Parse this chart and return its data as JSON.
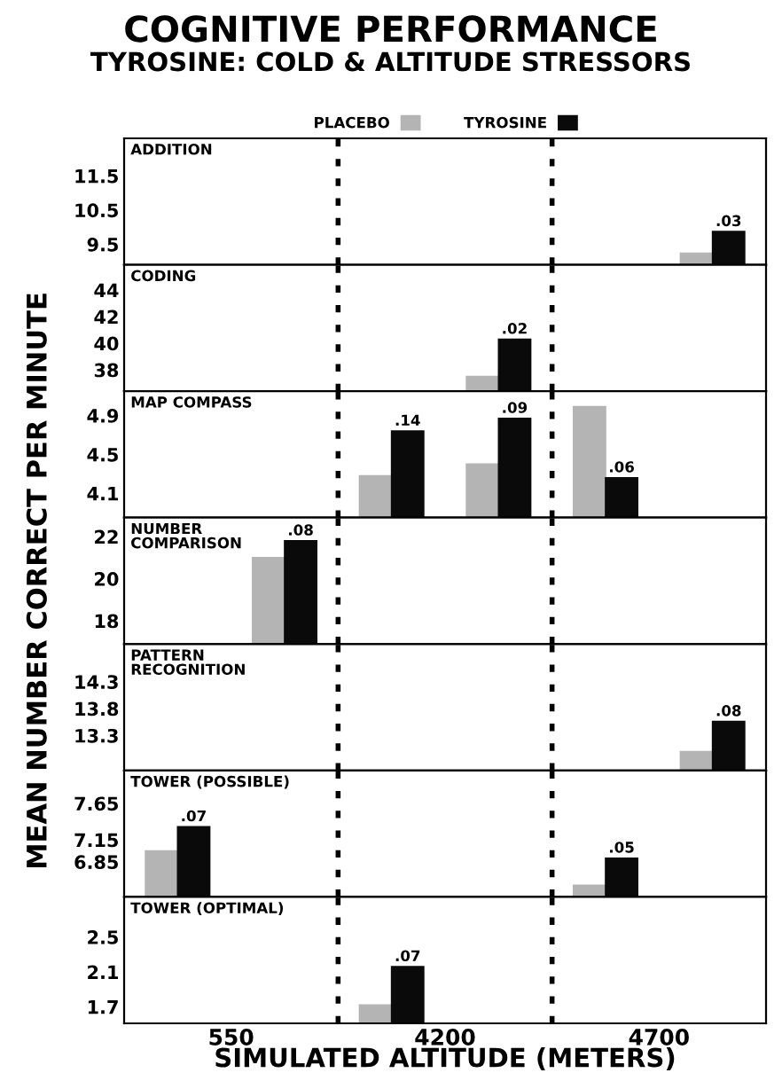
{
  "chart_data": [
    {
      "type": "bar",
      "title": "COGNITIVE PERFORMANCE",
      "subtitle": "TYROSINE: COLD & ALTITUDE STRESSORS",
      "annotations": [
        "ADDITION",
        ".03"
      ],
      "categories": [
        "550",
        "4200",
        "4700"
      ],
      "ylim": [
        8.9,
        12.6
      ],
      "yticks": [
        9.5,
        10.5,
        11.5
      ],
      "legend": "top",
      "tick_labels": "y",
      "series": [
        {
          "name": "PLACEBO",
          "color": "#b4b4b4",
          "values": [
            null,
            null,
            null
          ]
        },
        {
          "name": "TYROSINE",
          "color": "#0a0a0a",
          "values": [
            null,
            null,
            null
          ]
        },
        {
          "color": "#b4b4b4",
          "values": [
            null,
            null,
            9.24
          ]
        },
        {
          "color": "#0a0a0a",
          "values": [
            null,
            null,
            9.87
          ]
        }
      ]
    },
    {
      "type": "bar",
      "annotations": [
        "CODING",
        ".02"
      ],
      "categories": [
        "550",
        "4200",
        "4700"
      ],
      "ylim": [
        36.4,
        45.9
      ],
      "yticks": [
        38,
        40,
        42,
        44
      ],
      "tick_labels": "y",
      "series": [
        {
          "color": "#b4b4b4",
          "values": [
            null,
            null,
            null
          ]
        },
        {
          "color": "#0a0a0a",
          "values": [
            null,
            null,
            null
          ]
        },
        {
          "color": "#b4b4b4",
          "values": [
            null,
            37.5,
            null
          ]
        },
        {
          "color": "#0a0a0a",
          "values": [
            null,
            40.3,
            null
          ]
        }
      ]
    },
    {
      "type": "bar",
      "annotations": [
        "MAP COMPASS",
        ".14",
        ".09",
        ".06"
      ],
      "categories": [
        "550",
        "4200",
        "4700"
      ],
      "ylim": [
        3.85,
        5.15
      ],
      "yticks": [
        4.1,
        4.5,
        4.9
      ],
      "tick_labels": "y",
      "series": [
        {
          "color": "#b4b4b4",
          "values": [
            null,
            4.28,
            4.99
          ]
        },
        {
          "color": "#0a0a0a",
          "values": [
            null,
            4.74,
            4.26
          ]
        },
        {
          "color": "#b4b4b4",
          "values": [
            null,
            4.4,
            null
          ]
        },
        {
          "color": "#0a0a0a",
          "values": [
            null,
            4.87,
            null
          ]
        }
      ]
    },
    {
      "type": "bar",
      "annotations": [
        "NUMBER\nCOMPARISON",
        ".08"
      ],
      "ylabel": "MEAN NUMBER CORRECT PER MINUTE",
      "categories": [
        "550",
        "4200",
        "4700"
      ],
      "ylim": [
        16.9,
        22.9
      ],
      "yticks": [
        18,
        20,
        22
      ],
      "tick_labels": "y",
      "series": [
        {
          "color": "#b4b4b4",
          "values": [
            null,
            null,
            null
          ]
        },
        {
          "color": "#0a0a0a",
          "values": [
            null,
            null,
            null
          ]
        },
        {
          "color": "#b4b4b4",
          "values": [
            21.0,
            null,
            null
          ]
        },
        {
          "color": "#0a0a0a",
          "values": [
            21.8,
            null,
            null
          ]
        }
      ]
    },
    {
      "type": "bar",
      "annotations": [
        "PATTERN\nRECOGNITION",
        ".08"
      ],
      "categories": [
        "550",
        "4200",
        "4700"
      ],
      "ylim": [
        12.65,
        15.0
      ],
      "yticks": [
        13.3,
        13.8,
        14.3
      ],
      "tick_labels": "y",
      "series": [
        {
          "color": "#b4b4b4",
          "values": [
            null,
            null,
            null
          ]
        },
        {
          "color": "#0a0a0a",
          "values": [
            null,
            null,
            null
          ]
        },
        {
          "color": "#b4b4b4",
          "values": [
            null,
            null,
            13.0
          ]
        },
        {
          "color": "#0a0a0a",
          "values": [
            null,
            null,
            13.56
          ]
        }
      ]
    },
    {
      "type": "bar",
      "annotations": [
        "TOWER (POSSIBLE)",
        ".07",
        ".05"
      ],
      "categories": [
        "550",
        "4200",
        "4700"
      ],
      "ylim": [
        6.37,
        8.1
      ],
      "yticks": [
        6.85,
        7.15,
        7.65
      ],
      "tick_labels": "y",
      "series": [
        {
          "color": "#b4b4b4",
          "values": [
            7.0,
            null,
            6.53
          ]
        },
        {
          "color": "#0a0a0a",
          "values": [
            7.33,
            null,
            6.9
          ]
        },
        {
          "color": "#b4b4b4",
          "values": [
            null,
            null,
            null
          ]
        },
        {
          "color": "#0a0a0a",
          "values": [
            null,
            null,
            null
          ]
        }
      ]
    },
    {
      "type": "bar",
      "annotations": [
        "TOWER (OPTIMAL)",
        ".07"
      ],
      "xlabel": "SIMULATED ALTITUDE (METERS)",
      "categories": [
        "550",
        "4200",
        "4700"
      ],
      "ylim": [
        1.51,
        2.96
      ],
      "yticks": [
        1.7,
        2.1,
        2.5
      ],
      "series": [
        {
          "color": "#b4b4b4",
          "values": [
            null,
            1.72,
            null
          ]
        },
        {
          "color": "#0a0a0a",
          "values": [
            null,
            2.16,
            null
          ]
        },
        {
          "color": "#b4b4b4",
          "values": [
            null,
            null,
            null
          ]
        },
        {
          "color": "#0a0a0a",
          "values": [
            null,
            null,
            null
          ]
        }
      ]
    }
  ]
}
